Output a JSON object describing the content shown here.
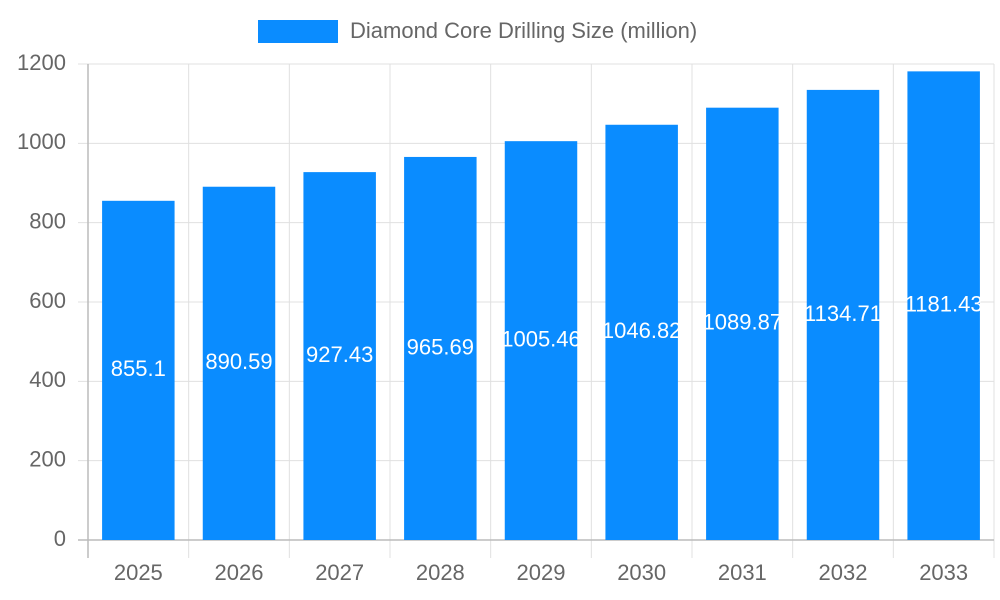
{
  "chart_data": {
    "type": "bar",
    "categories": [
      "2025",
      "2026",
      "2027",
      "2028",
      "2029",
      "2030",
      "2031",
      "2032",
      "2033"
    ],
    "series": [
      {
        "name": "Diamond Core Drilling Size (million)",
        "color": "#0a8cff",
        "values": [
          855.1,
          890.59,
          927.43,
          965.69,
          1005.46,
          1046.82,
          1089.87,
          1134.71,
          1181.43
        ]
      }
    ],
    "ylim": [
      0,
      1200
    ],
    "yticks": [
      0,
      200,
      400,
      600,
      800,
      1000,
      1200
    ],
    "grid": true,
    "legend": "top"
  }
}
